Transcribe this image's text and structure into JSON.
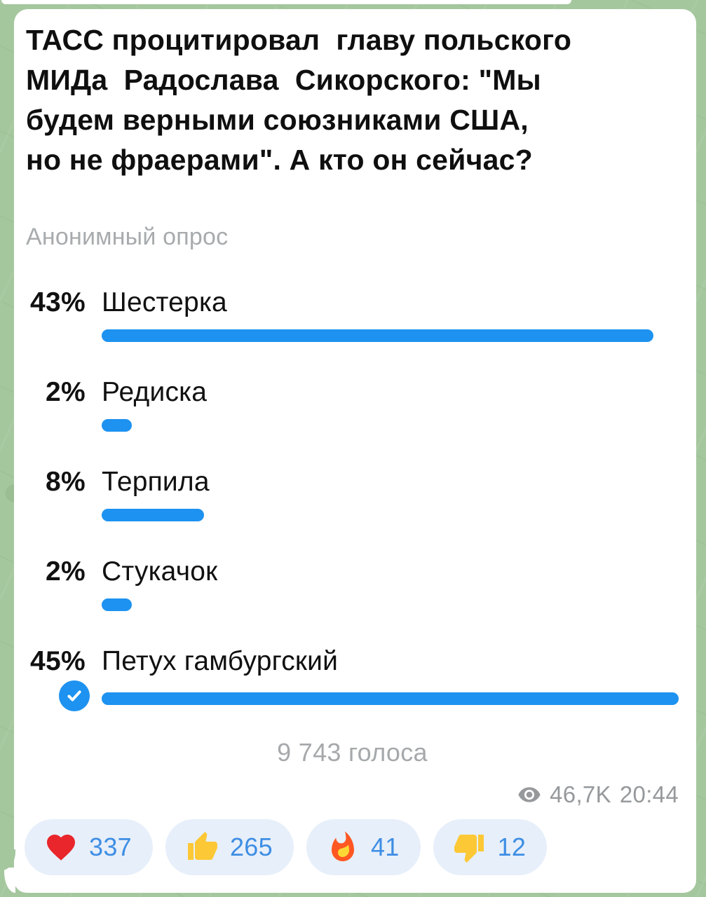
{
  "message": {
    "title": "ТАСС процитировал  главу польского\nМИДа  Радослава  Сикорского: \"Мы\nбудем верными союзниками США,\nно не фраерами\". А кто он сейчас?",
    "poll_type_label": "Анонимный опрос",
    "votes_total_label": "9 743 голоса",
    "views": "46,7K",
    "time": "20:44"
  },
  "chart_data": {
    "type": "bar",
    "title": "ТАСС процитировал главу польского МИДа Радослава Сикорского: \"Мы будем верными союзниками США, но не фраерами\". А кто он сейчас?",
    "categories": [
      "Шестерка",
      "Редиска",
      "Терпила",
      "Стукачок",
      "Петух гамбургский"
    ],
    "values": [
      43,
      2,
      8,
      2,
      45
    ],
    "unit": "%",
    "total_votes": 9743,
    "selected_option": "Петух гамбургский",
    "bar_color": "#1d92f0"
  },
  "poll": {
    "options": [
      {
        "pct": "43%",
        "value": 43,
        "label": "Шестерка",
        "voted": false
      },
      {
        "pct": "2%",
        "value": 2,
        "label": "Редиска",
        "voted": false
      },
      {
        "pct": "8%",
        "value": 8,
        "label": "Терпила",
        "voted": false
      },
      {
        "pct": "2%",
        "value": 2,
        "label": "Стукачок",
        "voted": false
      },
      {
        "pct": "45%",
        "value": 45,
        "label": "Петух гамбургский",
        "voted": true
      }
    ]
  },
  "reactions": [
    {
      "icon": "heart-icon",
      "count": "337"
    },
    {
      "icon": "thumbs-up-icon",
      "count": "265"
    },
    {
      "icon": "fire-icon",
      "count": "41"
    },
    {
      "icon": "thumbs-down-icon",
      "count": "12"
    }
  ],
  "colors": {
    "background": "#a5c79e",
    "bubble": "#ffffff",
    "bar_blue": "#1d92f0",
    "reaction_pill_bg": "#e7effa",
    "reaction_count_blue": "#3e8ee4",
    "muted_gray": "#a6a9ab"
  }
}
